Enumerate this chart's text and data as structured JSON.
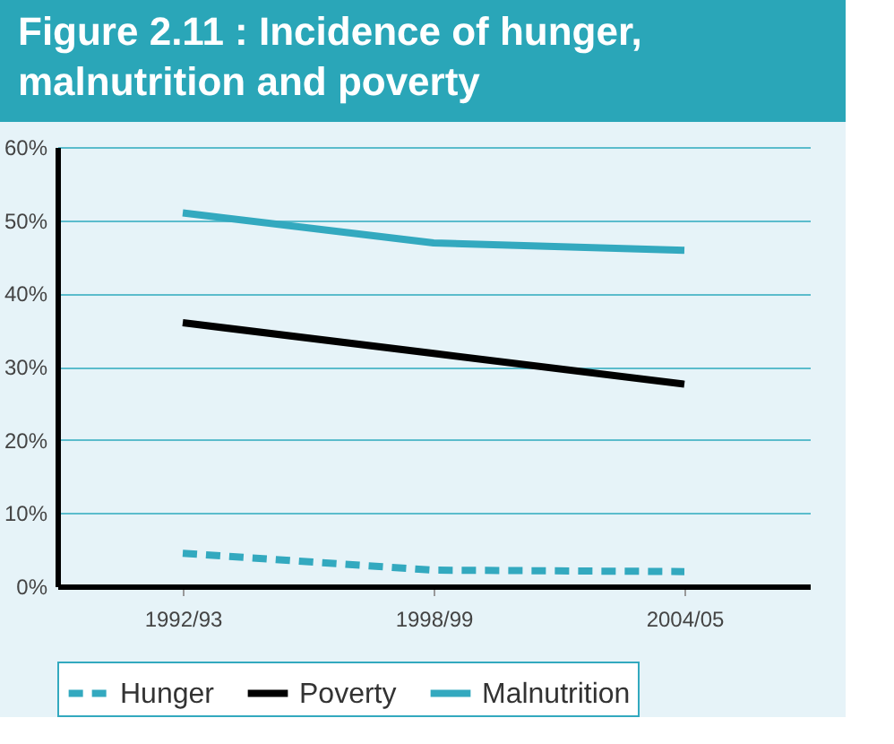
{
  "chart_data": {
    "type": "line",
    "title": "Figure 2.11 : Incidence of hunger,\nmalnutrition and poverty",
    "categories": [
      "1992/93",
      "1998/99",
      "2004/05"
    ],
    "series": [
      {
        "name": "Hunger",
        "color": "#33a9bf",
        "values": [
          4.5,
          2.2,
          2.0
        ],
        "line_style": "dashed"
      },
      {
        "name": "Poverty",
        "color": "#000000",
        "values": [
          36.0,
          31.8,
          27.6
        ],
        "line_style": "solid"
      },
      {
        "name": "Malnutrition",
        "color": "#33a9bf",
        "values": [
          51.0,
          46.9,
          45.9
        ],
        "line_style": "solid"
      }
    ],
    "ylim": [
      0,
      60
    ],
    "yticks": [
      {
        "value": 0,
        "label": "0%"
      },
      {
        "value": 10,
        "label": "10%"
      },
      {
        "value": 20,
        "label": "20%"
      },
      {
        "value": 30,
        "label": "30%"
      },
      {
        "value": 40,
        "label": "40%"
      },
      {
        "value": 50,
        "label": "50%"
      },
      {
        "value": 60,
        "label": "60%"
      }
    ],
    "grid": "y",
    "legend": "bottom",
    "marker": "none"
  }
}
